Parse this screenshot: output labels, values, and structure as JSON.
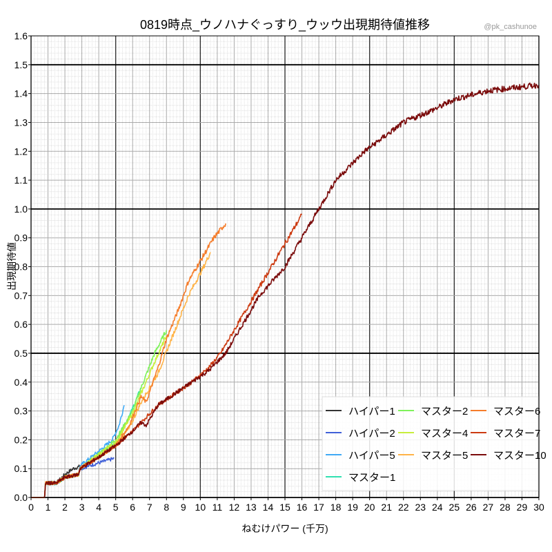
{
  "chart_data": {
    "type": "line",
    "title": "0819時点_ウノハナぐっすり_ウッウ出現期待値推移",
    "watermark": "@pk_cashunoe",
    "xlabel": "ねむけパワー (千万)",
    "ylabel": "出現期待値",
    "xlim": [
      0,
      30
    ],
    "ylim": [
      0,
      1.6
    ],
    "xticks": [
      0,
      1,
      2,
      3,
      4,
      5,
      6,
      7,
      8,
      9,
      10,
      11,
      12,
      13,
      14,
      15,
      16,
      17,
      18,
      19,
      20,
      21,
      22,
      23,
      24,
      25,
      26,
      27,
      28,
      29,
      30
    ],
    "yticks": [
      "0.0",
      "0.1",
      "0.2",
      "0.3",
      "0.4",
      "0.5",
      "0.6",
      "0.7",
      "0.8",
      "0.9",
      "1.0",
      "1.1",
      "1.2",
      "1.3",
      "1.4",
      "1.5",
      "1.6"
    ],
    "grid": true,
    "legend_position": "bottom-right",
    "series": [
      {
        "name": "ハイパー1",
        "color": "#333333",
        "points": [
          [
            0,
            0
          ],
          [
            0.8,
            0
          ],
          [
            0.85,
            0.05
          ],
          [
            1.5,
            0.05
          ],
          [
            2,
            0.08
          ],
          [
            2.5,
            0.1
          ],
          [
            3,
            0.11
          ]
        ]
      },
      {
        "name": "ハイパー2",
        "color": "#4060d8",
        "points": [
          [
            0,
            0
          ],
          [
            0.8,
            0
          ],
          [
            0.85,
            0.05
          ],
          [
            1.5,
            0.05
          ],
          [
            2,
            0.07
          ],
          [
            2.8,
            0.08
          ],
          [
            2.9,
            0.1
          ],
          [
            4,
            0.12
          ],
          [
            4.9,
            0.135
          ]
        ]
      },
      {
        "name": "ハイパー5",
        "color": "#3fa9f5",
        "points": [
          [
            0,
            0
          ],
          [
            0.8,
            0
          ],
          [
            0.85,
            0.05
          ],
          [
            1.5,
            0.05
          ],
          [
            2,
            0.07
          ],
          [
            2.8,
            0.08
          ],
          [
            2.9,
            0.11
          ],
          [
            4,
            0.16
          ],
          [
            4.8,
            0.2
          ],
          [
            5.2,
            0.25
          ],
          [
            5.5,
            0.32
          ]
        ]
      },
      {
        "name": "マスター1",
        "color": "#2fe0b0",
        "points": [
          [
            0,
            0
          ],
          [
            0.8,
            0
          ],
          [
            0.85,
            0.05
          ],
          [
            1.5,
            0.05
          ],
          [
            2,
            0.07
          ],
          [
            2.8,
            0.08
          ],
          [
            2.9,
            0.1
          ],
          [
            4,
            0.15
          ],
          [
            5,
            0.19
          ],
          [
            5.8,
            0.28
          ],
          [
            6.5,
            0.38
          ]
        ]
      },
      {
        "name": "マスター2",
        "color": "#7ef25a",
        "points": [
          [
            0,
            0
          ],
          [
            0.8,
            0
          ],
          [
            0.85,
            0.05
          ],
          [
            1.5,
            0.05
          ],
          [
            2,
            0.07
          ],
          [
            2.8,
            0.08
          ],
          [
            2.9,
            0.1
          ],
          [
            4,
            0.15
          ],
          [
            5,
            0.2
          ],
          [
            6,
            0.3
          ],
          [
            6.5,
            0.38
          ],
          [
            7.3,
            0.5
          ],
          [
            8,
            0.58
          ]
        ]
      },
      {
        "name": "マスター4",
        "color": "#c8ee3c",
        "points": [
          [
            0,
            0
          ],
          [
            0.8,
            0
          ],
          [
            0.85,
            0.05
          ],
          [
            1.5,
            0.05
          ],
          [
            2,
            0.07
          ],
          [
            2.8,
            0.08
          ],
          [
            2.9,
            0.1
          ],
          [
            4,
            0.15
          ],
          [
            5,
            0.19
          ],
          [
            6,
            0.29
          ],
          [
            6.5,
            0.36
          ],
          [
            7.3,
            0.47
          ],
          [
            8,
            0.56
          ]
        ]
      },
      {
        "name": "マスター5",
        "color": "#ffb347",
        "points": [
          [
            0,
            0
          ],
          [
            0.8,
            0
          ],
          [
            0.85,
            0.05
          ],
          [
            1.5,
            0.05
          ],
          [
            2,
            0.07
          ],
          [
            2.8,
            0.08
          ],
          [
            2.9,
            0.1
          ],
          [
            4,
            0.14
          ],
          [
            5,
            0.18
          ],
          [
            5.8,
            0.24
          ],
          [
            6.5,
            0.33
          ],
          [
            7.5,
            0.43
          ],
          [
            8.5,
            0.58
          ],
          [
            9.3,
            0.7
          ],
          [
            10.2,
            0.8
          ],
          [
            10.6,
            0.85
          ]
        ]
      },
      {
        "name": "マスター6",
        "color": "#f57c2a",
        "points": [
          [
            0,
            0
          ],
          [
            0.8,
            0
          ],
          [
            0.85,
            0.05
          ],
          [
            1.5,
            0.05
          ],
          [
            2,
            0.07
          ],
          [
            2.8,
            0.08
          ],
          [
            2.9,
            0.1
          ],
          [
            4,
            0.14
          ],
          [
            5,
            0.18
          ],
          [
            5.8,
            0.25
          ],
          [
            6.5,
            0.35
          ],
          [
            6.8,
            0.33
          ],
          [
            7.5,
            0.45
          ],
          [
            8,
            0.55
          ],
          [
            8.7,
            0.65
          ],
          [
            9.3,
            0.75
          ],
          [
            10,
            0.82
          ],
          [
            10.8,
            0.9
          ],
          [
            11.5,
            0.95
          ]
        ]
      },
      {
        "name": "マスター7",
        "color": "#cc3a10",
        "points": [
          [
            0,
            0
          ],
          [
            0.8,
            0
          ],
          [
            0.85,
            0.05
          ],
          [
            1.5,
            0.05
          ],
          [
            2,
            0.07
          ],
          [
            2.8,
            0.08
          ],
          [
            2.9,
            0.1
          ],
          [
            4,
            0.14
          ],
          [
            5,
            0.18
          ],
          [
            6,
            0.23
          ],
          [
            6.5,
            0.26
          ],
          [
            7.5,
            0.32
          ],
          [
            8.5,
            0.36
          ],
          [
            9.5,
            0.4
          ],
          [
            10.5,
            0.45
          ],
          [
            11.2,
            0.5
          ],
          [
            12.2,
            0.6
          ],
          [
            13.2,
            0.7
          ],
          [
            14.2,
            0.8
          ],
          [
            15.2,
            0.9
          ],
          [
            16,
            0.98
          ]
        ]
      },
      {
        "name": "マスター10",
        "color": "#7a0a0a",
        "points": [
          [
            0,
            0
          ],
          [
            0.8,
            0
          ],
          [
            0.85,
            0.05
          ],
          [
            1.5,
            0.05
          ],
          [
            2,
            0.07
          ],
          [
            2.8,
            0.08
          ],
          [
            2.9,
            0.1
          ],
          [
            4,
            0.14
          ],
          [
            5,
            0.18
          ],
          [
            6,
            0.23
          ],
          [
            6.5,
            0.26
          ],
          [
            6.8,
            0.25
          ],
          [
            7.5,
            0.32
          ],
          [
            8.5,
            0.36
          ],
          [
            9.5,
            0.4
          ],
          [
            10.5,
            0.44
          ],
          [
            11.5,
            0.5
          ],
          [
            12.5,
            0.6
          ],
          [
            13.5,
            0.7
          ],
          [
            15,
            0.8
          ],
          [
            16,
            0.9
          ],
          [
            17,
            1.0
          ],
          [
            18,
            1.1
          ],
          [
            19.7,
            1.2
          ],
          [
            22,
            1.3
          ],
          [
            24,
            1.35
          ],
          [
            25,
            1.38
          ],
          [
            27,
            1.41
          ],
          [
            30,
            1.43
          ]
        ]
      }
    ]
  }
}
